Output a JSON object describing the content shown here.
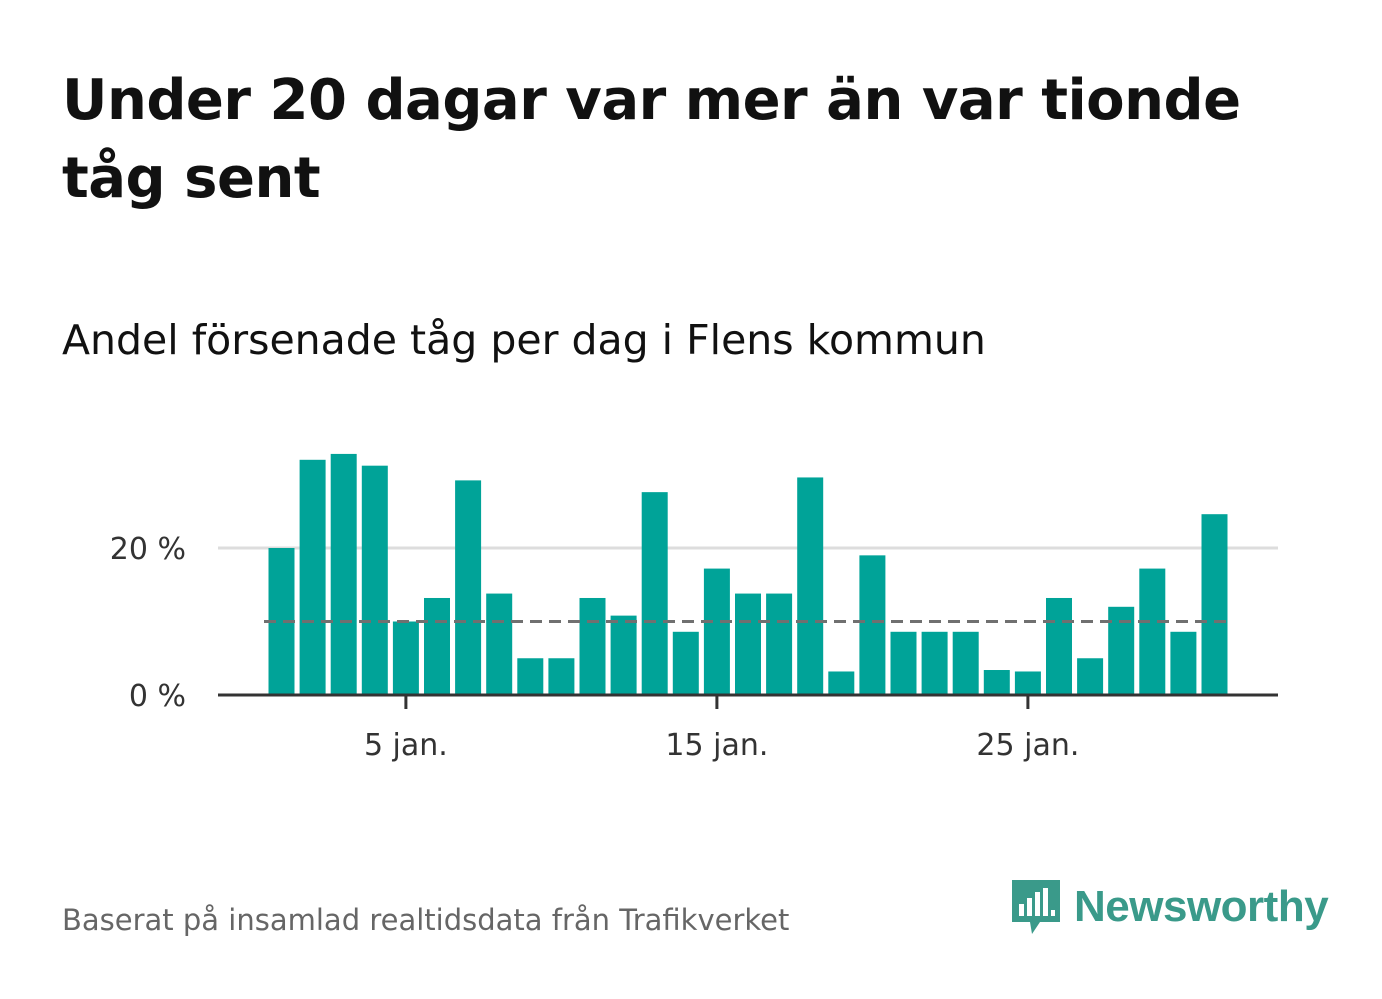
{
  "title": "Under 20 dagar var mer än var tionde tåg sent",
  "subtitle": "Andel försenade tåg per dag i Flens kommun",
  "source": "Baserat på insamlad realtidsdata från Trafikverket",
  "brand": "Newsworthy",
  "colors": {
    "bar": "#00a398",
    "reference": "#707070",
    "grid": "#dddddd",
    "axis": "#333333",
    "brand": "#3a9a8a"
  },
  "chart_data": {
    "type": "bar",
    "x": [
      1,
      2,
      3,
      4,
      5,
      6,
      7,
      8,
      9,
      10,
      11,
      12,
      13,
      14,
      15,
      16,
      17,
      18,
      19,
      20,
      21,
      22,
      23,
      24,
      25,
      26,
      27,
      28,
      29,
      30,
      31
    ],
    "values": [
      20,
      32,
      32.8,
      31.2,
      10,
      13.2,
      29.2,
      13.8,
      5,
      5,
      13.2,
      10.8,
      27.6,
      8.6,
      17.2,
      13.8,
      13.8,
      29.6,
      3.2,
      19,
      8.6,
      8.6,
      8.6,
      3.4,
      3.2,
      13.2,
      5,
      12,
      17.2,
      8.6,
      24.6
    ],
    "reference_line": 10,
    "xlabel": "",
    "ylabel": "",
    "ylim": [
      0,
      34
    ],
    "y_ticks": [
      {
        "value": 0,
        "label": "0 %"
      },
      {
        "value": 20,
        "label": "20 %"
      }
    ],
    "x_ticks": [
      {
        "value": 5,
        "label": "5 jan."
      },
      {
        "value": 15,
        "label": "15 jan."
      },
      {
        "value": 25,
        "label": "25 jan."
      }
    ],
    "grid": true,
    "legend": "none"
  }
}
